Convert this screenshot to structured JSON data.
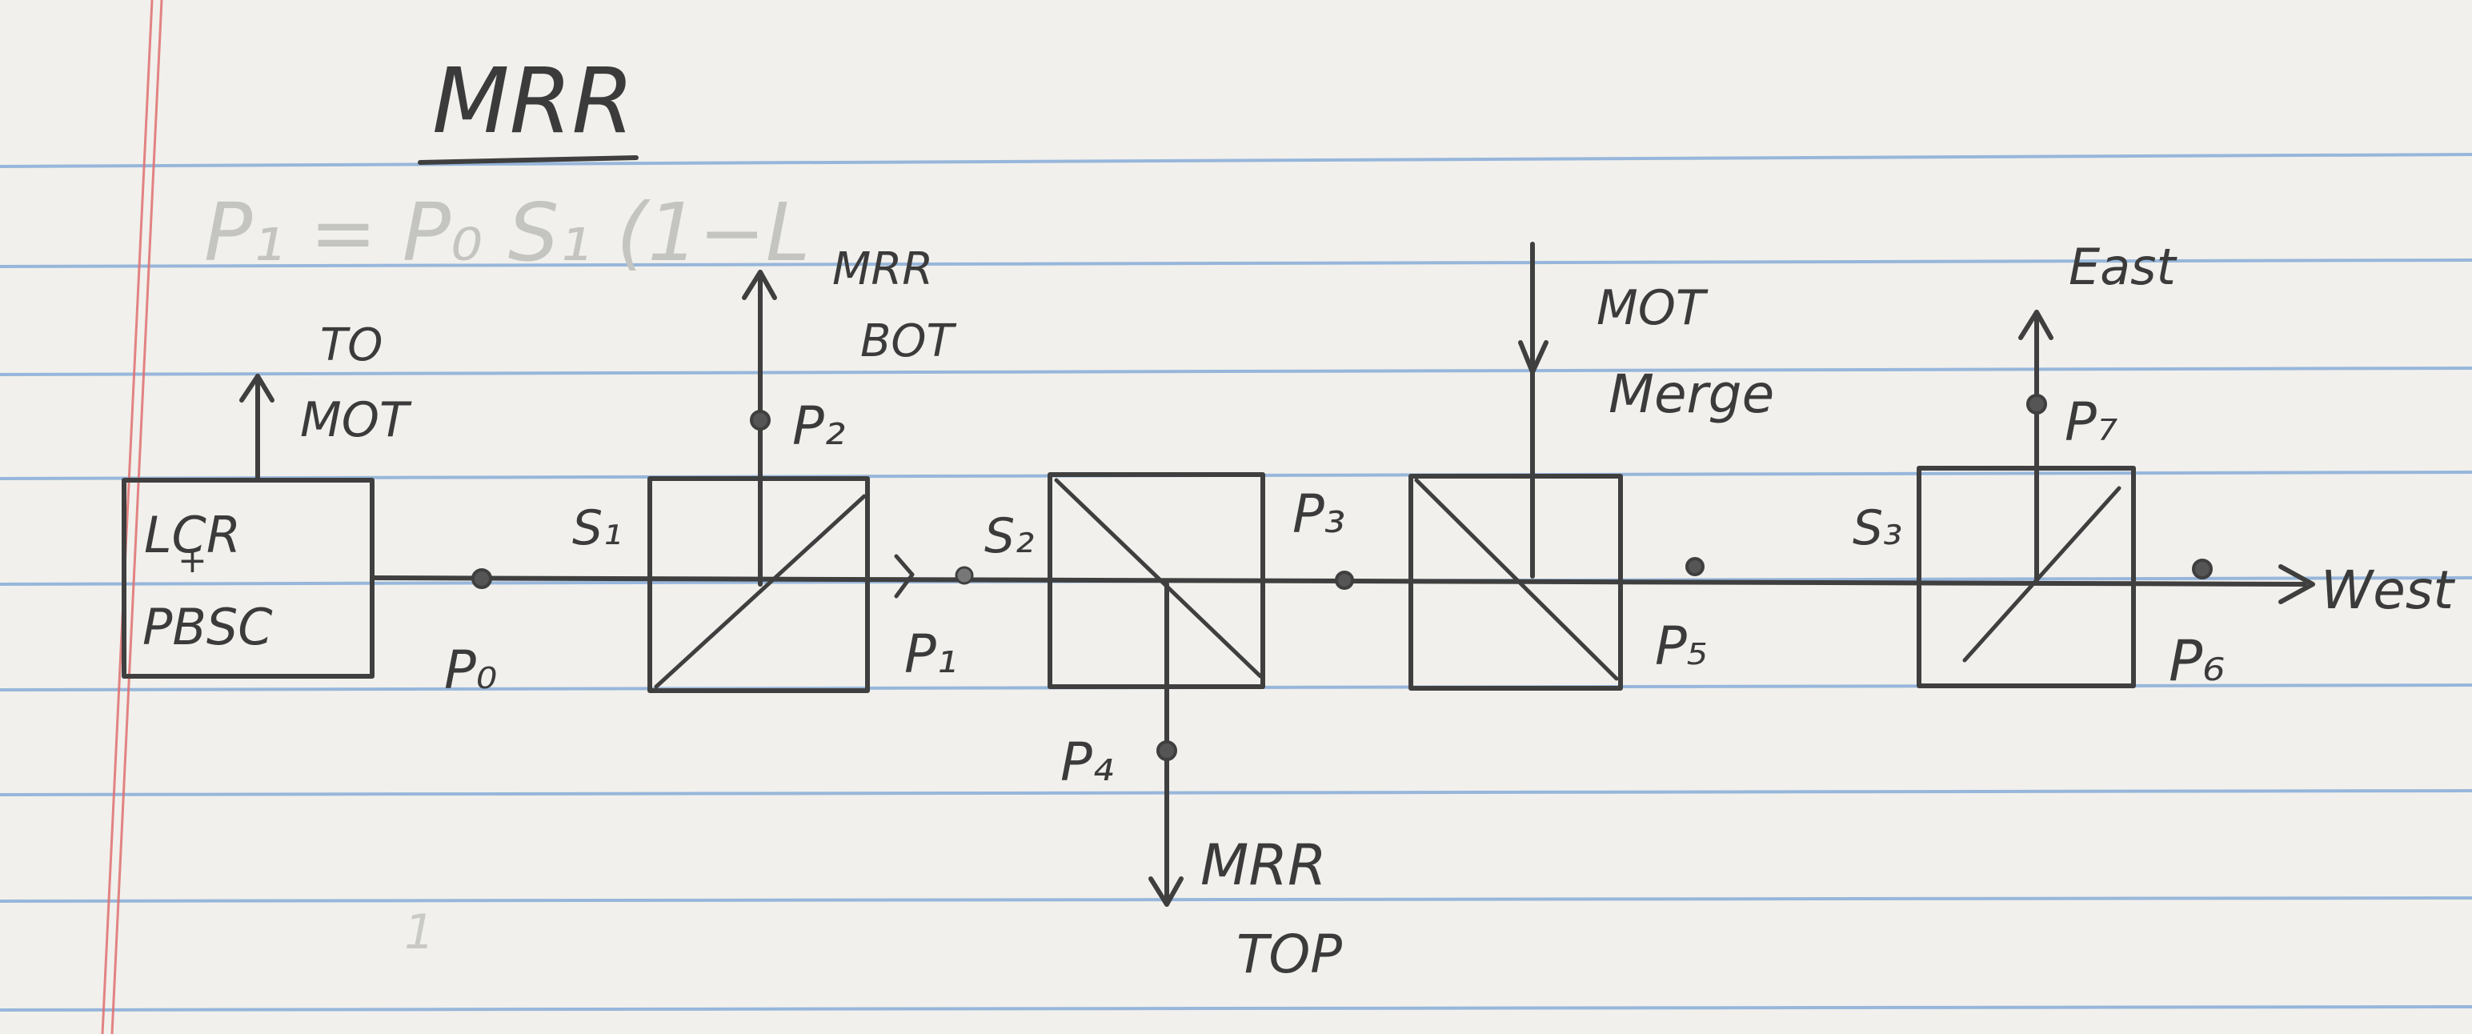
{
  "paper": {
    "rule_color": "#7aa3d6",
    "margin_color": "#e07070",
    "paper_color": "#f1f0ec",
    "ink_color": "#3f3f3f",
    "faint_color": "#c4c4c0"
  },
  "title": "MRR",
  "faint_equation": "P₁ = P₀ S₁ (1−L",
  "source_box": {
    "line1": "LCR",
    "line2": "+",
    "line3": "PBSC"
  },
  "arrows": {
    "to_mot": {
      "line1": "TO",
      "line2": "MOT"
    },
    "mrr_bot": {
      "line1": "MRR",
      "line2": "BOT"
    },
    "mot_merge": {
      "line1": "MOT",
      "line2": "Merge"
    },
    "east": "East",
    "mrr_top": {
      "line1": "MRR",
      "line2": "TOP"
    },
    "west": "West"
  },
  "splitter_labels": [
    "S₁",
    "S₂",
    "S₃"
  ],
  "points": [
    "P₀",
    "P₁",
    "P₂",
    "P₃",
    "P₄",
    "P₅",
    "P₆",
    "P₇"
  ]
}
